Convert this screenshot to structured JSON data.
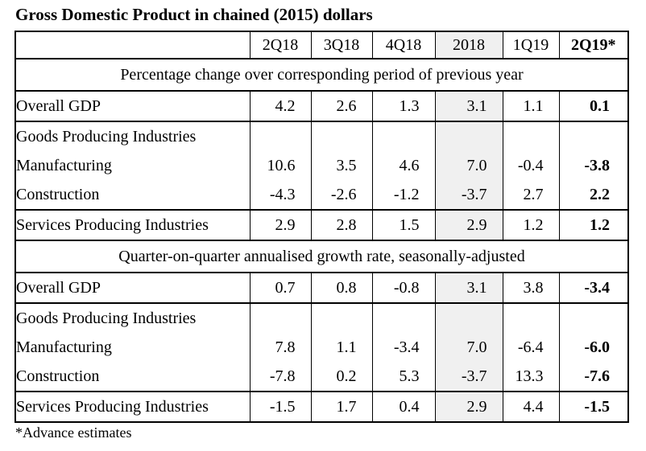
{
  "title": "Gross Domestic Product in chained (2015) dollars",
  "columns": [
    "2Q18",
    "3Q18",
    "4Q18",
    "2018",
    "1Q19",
    "2Q19*"
  ],
  "section1": {
    "heading": "Percentage change over corresponding period of previous year",
    "rows": [
      {
        "label": "Overall GDP",
        "values": [
          "4.2",
          "2.6",
          "1.3",
          "3.1",
          "1.1",
          "0.1"
        ]
      },
      {
        "label": "Goods Producing Industries",
        "values": [
          "",
          "",
          "",
          "",
          "",
          ""
        ]
      },
      {
        "label": "Manufacturing",
        "values": [
          "10.6",
          "3.5",
          "4.6",
          "7.0",
          "-0.4",
          "-3.8"
        ]
      },
      {
        "label": "Construction",
        "values": [
          "-4.3",
          "-2.6",
          "-1.2",
          "-3.7",
          "2.7",
          "2.2"
        ]
      },
      {
        "label": "Services Producing Industries",
        "values": [
          "2.9",
          "2.8",
          "1.5",
          "2.9",
          "1.2",
          "1.2"
        ]
      }
    ]
  },
  "section2": {
    "heading": "Quarter-on-quarter annualised growth rate, seasonally-adjusted",
    "rows": [
      {
        "label": "Overall GDP",
        "values": [
          "0.7",
          "0.8",
          "-0.8",
          "3.1",
          "3.8",
          "-3.4"
        ]
      },
      {
        "label": "Goods Producing Industries",
        "values": [
          "",
          "",
          "",
          "",
          "",
          ""
        ]
      },
      {
        "label": "Manufacturing",
        "values": [
          "7.8",
          "1.1",
          "-3.4",
          "7.0",
          "-6.4",
          "-6.0"
        ]
      },
      {
        "label": "Construction",
        "values": [
          "-7.8",
          "0.2",
          "5.3",
          "-3.7",
          "13.3",
          "-7.6"
        ]
      },
      {
        "label": "Services Producing Industries",
        "values": [
          "-1.5",
          "1.7",
          "0.4",
          "2.9",
          "4.4",
          "-1.5"
        ]
      }
    ]
  },
  "footnote": "*Advance estimates",
  "colors": {
    "annual_column_shade": "#f0f0f0",
    "border": "#000000"
  }
}
